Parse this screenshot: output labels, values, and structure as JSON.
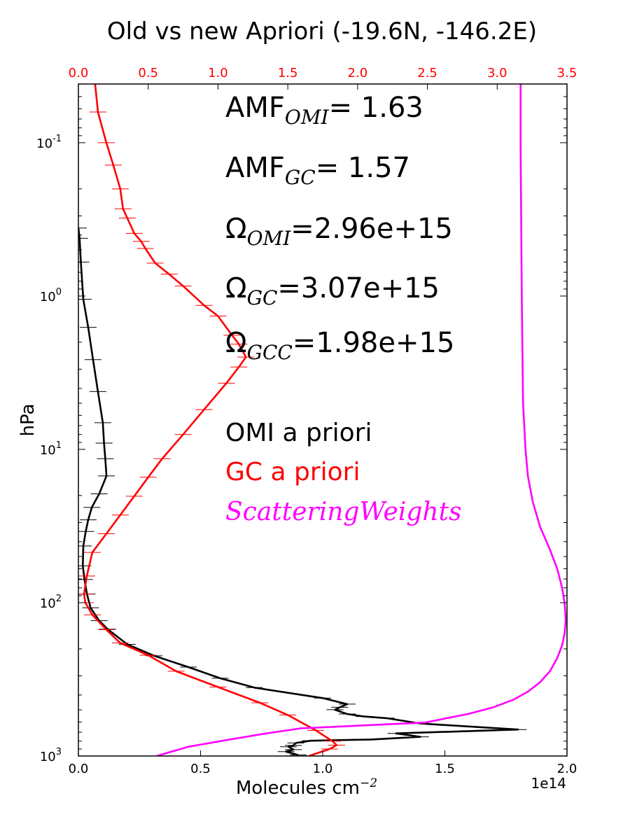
{
  "chart_data": {
    "type": "line",
    "title": "Old vs new Apriori (-19.6N, -146.2E)",
    "xlabel": "Molecules cm",
    "xlabel_sup": "−2",
    "ylabel": "hPa",
    "offset_text": "1e14",
    "x_bottom": {
      "lim": [
        0.0,
        2.0
      ],
      "ticks": [
        0.0,
        0.5,
        1.0,
        1.5,
        2.0
      ],
      "tick_labels": [
        "0.0",
        "0.5",
        "1.0",
        "1.5",
        "2.0"
      ]
    },
    "x_top": {
      "lim": [
        0.0,
        3.5
      ],
      "ticks": [
        0.0,
        0.5,
        1.0,
        1.5,
        2.0,
        2.5,
        3.0,
        3.5
      ],
      "tick_labels": [
        "0.0",
        "0.5",
        "1.0",
        "1.5",
        "2.0",
        "2.5",
        "3.0",
        "3.5"
      ],
      "color": "#ff0000"
    },
    "y": {
      "scale": "log",
      "inverted": true,
      "lim": [
        0.0414,
        1000
      ],
      "ticks": [
        0.1,
        1,
        10,
        100,
        1000
      ],
      "tick_base": "10",
      "tick_exponents": [
        "-1",
        "0",
        "1",
        "2",
        "3"
      ]
    },
    "annotations": [
      {
        "base": "AMF",
        "sub": "OMI",
        "rest": "= 1.63"
      },
      {
        "base": "AMF",
        "sub": "GC",
        "rest": "= 1.57"
      },
      {
        "base": "Ω",
        "sub": "OMI",
        "rest": "=2.96e+15"
      },
      {
        "base": "Ω",
        "sub": "GC",
        "rest": "=3.07e+15"
      },
      {
        "base": "Ω",
        "sub": "GCC",
        "rest": "=1.98e+15"
      }
    ],
    "legend": [
      {
        "text": "OMI a priori",
        "color": "#000000",
        "style": "normal"
      },
      {
        "text": "GC a priori",
        "color": "#ff0000",
        "style": "normal"
      },
      {
        "text": "ScatteringWeights",
        "color": "#ff00ff",
        "style": "italic"
      }
    ],
    "series": [
      {
        "name": "OMI a priori",
        "color": "#000000",
        "axis": "bottom",
        "points": [
          [
            0.0,
            0.36
          ],
          [
            0.005,
            0.42
          ],
          [
            0.01,
            0.6
          ],
          [
            0.02,
            1.05
          ],
          [
            0.04,
            1.6
          ],
          [
            0.06,
            2.6
          ],
          [
            0.08,
            4.2
          ],
          [
            0.1,
            6.7
          ],
          [
            0.105,
            9.1
          ],
          [
            0.11,
            11.5
          ],
          [
            0.115,
            14.9
          ],
          [
            0.085,
            19.5
          ],
          [
            0.055,
            23.9
          ],
          [
            0.04,
            28.8
          ],
          [
            0.03,
            34.3
          ],
          [
            0.02,
            42.7
          ],
          [
            0.018,
            57.5
          ],
          [
            0.025,
            70.6
          ],
          [
            0.035,
            87.8
          ],
          [
            0.05,
            108
          ],
          [
            0.085,
            131
          ],
          [
            0.12,
            149
          ],
          [
            0.2,
            187
          ],
          [
            0.31,
            222
          ],
          [
            0.45,
            263
          ],
          [
            0.58,
            311
          ],
          [
            0.72,
            358
          ],
          [
            1.0,
            419
          ],
          [
            1.1,
            459
          ],
          [
            1.07,
            481
          ],
          [
            1.05,
            499
          ],
          [
            1.1,
            532
          ],
          [
            1.17,
            553
          ],
          [
            1.26,
            566
          ],
          [
            1.4,
            614
          ],
          [
            1.8,
            672
          ],
          [
            1.3,
            712
          ],
          [
            1.4,
            750
          ],
          [
            1.2,
            780
          ],
          [
            0.95,
            795
          ],
          [
            0.89,
            822
          ],
          [
            0.88,
            853
          ],
          [
            0.86,
            870
          ],
          [
            0.88,
            908
          ],
          [
            0.85,
            937
          ],
          [
            0.9,
            985
          ]
        ]
      },
      {
        "name": "GC a priori",
        "color": "#ff0000",
        "axis": "top",
        "points": [
          [
            0.12,
            0.0414
          ],
          [
            0.14,
            0.063
          ],
          [
            0.2,
            0.1
          ],
          [
            0.25,
            0.14
          ],
          [
            0.3,
            0.2
          ],
          [
            0.32,
            0.27
          ],
          [
            0.35,
            0.31
          ],
          [
            0.4,
            0.39
          ],
          [
            0.45,
            0.44
          ],
          [
            0.48,
            0.49
          ],
          [
            0.55,
            0.61
          ],
          [
            0.65,
            0.72
          ],
          [
            0.75,
            0.86
          ],
          [
            0.9,
            1.15
          ],
          [
            1.0,
            1.35
          ],
          [
            1.1,
            1.8
          ],
          [
            1.15,
            2.06
          ],
          [
            1.2,
            2.5
          ],
          [
            1.15,
            2.9
          ],
          [
            1.06,
            3.7
          ],
          [
            0.9,
            5.5
          ],
          [
            0.75,
            8.0
          ],
          [
            0.6,
            11.5
          ],
          [
            0.5,
            15.2
          ],
          [
            0.4,
            20.2
          ],
          [
            0.3,
            26.8
          ],
          [
            0.2,
            35.5
          ],
          [
            0.1,
            47.0
          ],
          [
            0.06,
            67.0
          ],
          [
            0.04,
            88.0
          ],
          [
            0.05,
            100
          ],
          [
            0.1,
            120
          ],
          [
            0.2,
            150
          ],
          [
            0.3,
            183
          ],
          [
            0.5,
            220
          ],
          [
            0.7,
            280
          ],
          [
            1.0,
            355
          ],
          [
            1.3,
            450
          ],
          [
            1.5,
            540
          ],
          [
            1.7,
            680
          ],
          [
            1.82,
            800
          ],
          [
            1.85,
            850
          ],
          [
            1.8,
            900
          ],
          [
            1.65,
            1000
          ]
        ]
      },
      {
        "name": "ScatteringWeights",
        "color": "#ff00ff",
        "axis": "bottom",
        "points": [
          [
            1.81,
            0.0414
          ],
          [
            1.81,
            0.1
          ],
          [
            1.815,
            1.0
          ],
          [
            1.82,
            5.0
          ],
          [
            1.83,
            10
          ],
          [
            1.84,
            15
          ],
          [
            1.86,
            22
          ],
          [
            1.89,
            32
          ],
          [
            1.93,
            45
          ],
          [
            1.96,
            60
          ],
          [
            1.98,
            80
          ],
          [
            1.99,
            100
          ],
          [
            1.995,
            130
          ],
          [
            1.99,
            160
          ],
          [
            1.98,
            190
          ],
          [
            1.96,
            230
          ],
          [
            1.93,
            280
          ],
          [
            1.89,
            330
          ],
          [
            1.84,
            380
          ],
          [
            1.78,
            430
          ],
          [
            1.7,
            480
          ],
          [
            1.6,
            530
          ],
          [
            1.5,
            570
          ],
          [
            1.42,
            605
          ],
          [
            0.91,
            660
          ],
          [
            0.75,
            720
          ],
          [
            0.6,
            790
          ],
          [
            0.45,
            870
          ],
          [
            0.32,
            1000
          ]
        ]
      }
    ]
  }
}
